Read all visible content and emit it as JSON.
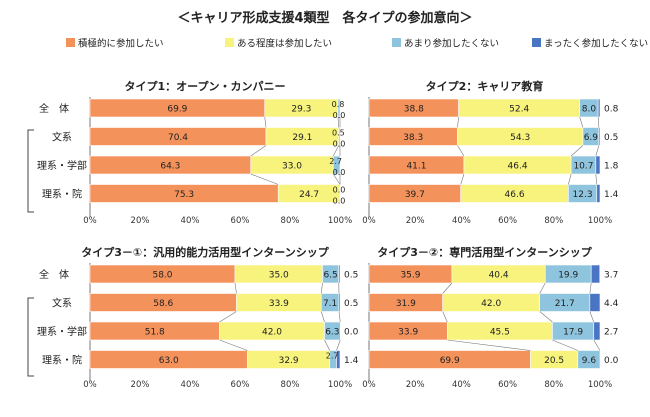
{
  "title": "＜キャリア形成支援4類型　各タイプの参加意向＞",
  "legend": [
    {
      "label": "積極的に参加したい",
      "color": "#f4925c"
    },
    {
      "label": "ある程度は参加したい",
      "color": "#f7f37c"
    },
    {
      "label": "あまり参加したくない",
      "color": "#8fc4de"
    },
    {
      "label": "まったく参加したくない",
      "color": "#4a74c4"
    }
  ],
  "chart_data": [
    {
      "type": "bar",
      "stacked": true,
      "orientation": "horizontal",
      "title": "タイプ1：オープン・カンパニー",
      "categories": [
        "全　体",
        "文系",
        "理系・学部",
        "理系・院"
      ],
      "series": [
        {
          "name": "積極的に参加したい",
          "values": [
            69.9,
            70.4,
            64.3,
            75.3
          ]
        },
        {
          "name": "ある程度は参加したい",
          "values": [
            29.3,
            29.1,
            33.0,
            24.7
          ]
        },
        {
          "name": "あまり参加したくない",
          "values": [
            0.8,
            0.5,
            2.7,
            0.0
          ]
        },
        {
          "name": "まったく参加したくない",
          "values": [
            0.0,
            0.0,
            0.0,
            0.0
          ]
        }
      ],
      "labels": [
        [
          "69.9",
          "29.3",
          "0.8",
          "0.0"
        ],
        [
          "70.4",
          "29.1",
          "0.5",
          "0.0"
        ],
        [
          "64.3",
          "33.0",
          "2.7",
          "0.0"
        ],
        [
          "75.3",
          "24.7",
          "0.0",
          "0.0"
        ]
      ],
      "xticks": [
        "0%",
        "20%",
        "40%",
        "60%",
        "80%",
        "100%"
      ],
      "xlim": [
        0,
        100
      ]
    },
    {
      "type": "bar",
      "stacked": true,
      "orientation": "horizontal",
      "title": "タイプ2：キャリア教育",
      "categories": [
        "全　体",
        "文系",
        "理系・学部",
        "理系・院"
      ],
      "series": [
        {
          "name": "積極的に参加したい",
          "values": [
            38.8,
            38.3,
            41.1,
            39.7
          ]
        },
        {
          "name": "ある程度は参加したい",
          "values": [
            52.4,
            54.3,
            46.4,
            46.6
          ]
        },
        {
          "name": "あまり参加したくない",
          "values": [
            8.0,
            6.9,
            10.7,
            12.3
          ]
        },
        {
          "name": "まったく参加したくない",
          "values": [
            0.8,
            0.5,
            1.8,
            1.4
          ]
        }
      ],
      "labels": [
        [
          "38.8",
          "52.4",
          "8.0",
          "0.8"
        ],
        [
          "38.3",
          "54.3",
          "6.9",
          "0.5"
        ],
        [
          "41.1",
          "46.4",
          "10.7",
          "1.8"
        ],
        [
          "39.7",
          "46.6",
          "12.3",
          "1.4"
        ]
      ],
      "xticks": [
        "0%",
        "20%",
        "40%",
        "60%",
        "80%",
        "100%"
      ],
      "xlim": [
        0,
        100
      ]
    },
    {
      "type": "bar",
      "stacked": true,
      "orientation": "horizontal",
      "title": "タイプ3－①：汎用的能力活用型インターンシップ",
      "categories": [
        "全　体",
        "文系",
        "理系・学部",
        "理系・院"
      ],
      "series": [
        {
          "name": "積極的に参加したい",
          "values": [
            58.0,
            58.6,
            51.8,
            63.0
          ]
        },
        {
          "name": "ある程度は参加したい",
          "values": [
            35.0,
            33.9,
            42.0,
            32.9
          ]
        },
        {
          "name": "あまり参加したくない",
          "values": [
            6.5,
            7.1,
            6.3,
            2.7
          ]
        },
        {
          "name": "まったく参加したくない",
          "values": [
            0.5,
            0.5,
            0.0,
            1.4
          ]
        }
      ],
      "labels": [
        [
          "58.0",
          "35.0",
          "6.5",
          "0.5"
        ],
        [
          "58.6",
          "33.9",
          "7.1",
          "0.5"
        ],
        [
          "51.8",
          "42.0",
          "6.3",
          "0.0"
        ],
        [
          "63.0",
          "32.9",
          "2.7",
          "1.4"
        ]
      ],
      "xticks": [
        "0%",
        "20%",
        "40%",
        "60%",
        "80%",
        "100%"
      ],
      "xlim": [
        0,
        100
      ]
    },
    {
      "type": "bar",
      "stacked": true,
      "orientation": "horizontal",
      "title": "タイプ3－②：専門活用型インターンシップ",
      "categories": [
        "",
        "",
        "",
        ""
      ],
      "series": [
        {
          "name": "積極的に参加したい",
          "values": [
            35.9,
            31.9,
            33.9,
            69.9
          ]
        },
        {
          "name": "ある程度は参加したい",
          "values": [
            40.4,
            42.0,
            45.5,
            20.5
          ]
        },
        {
          "name": "あまり参加したくない",
          "values": [
            19.9,
            21.7,
            17.9,
            9.6
          ]
        },
        {
          "name": "まったく参加したくない",
          "values": [
            3.7,
            4.4,
            2.7,
            0.0
          ]
        }
      ],
      "labels": [
        [
          "35.9",
          "40.4",
          "19.9",
          "3.7"
        ],
        [
          "31.9",
          "42.0",
          "21.7",
          "4.4"
        ],
        [
          "33.9",
          "45.5",
          "17.9",
          "2.7"
        ],
        [
          "69.9",
          "20.5",
          "9.6",
          "0.0"
        ]
      ],
      "xticks": [
        "0%",
        "20%",
        "40%",
        "60%",
        "80%",
        "100%"
      ],
      "xlim": [
        0,
        100
      ]
    }
  ]
}
